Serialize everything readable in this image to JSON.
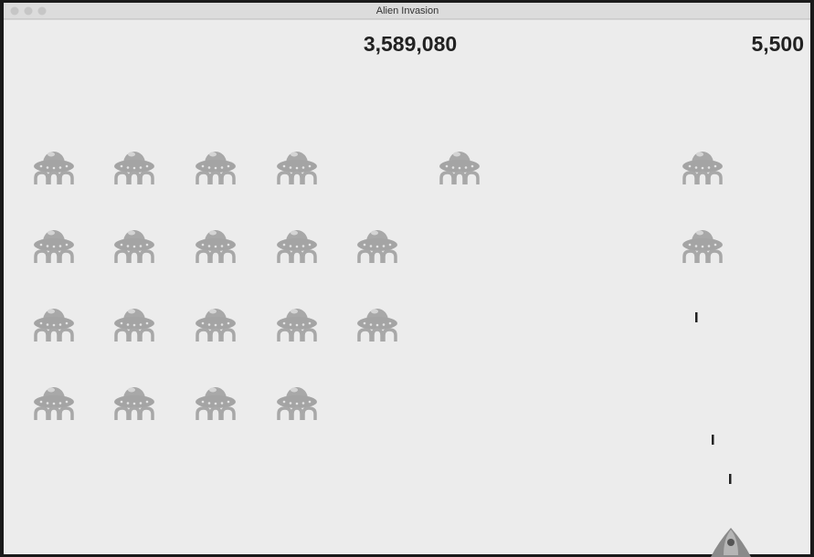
{
  "window": {
    "title": "Alien Invasion"
  },
  "hud": {
    "high_score": "3,589,080",
    "score": "5,500"
  }
}
